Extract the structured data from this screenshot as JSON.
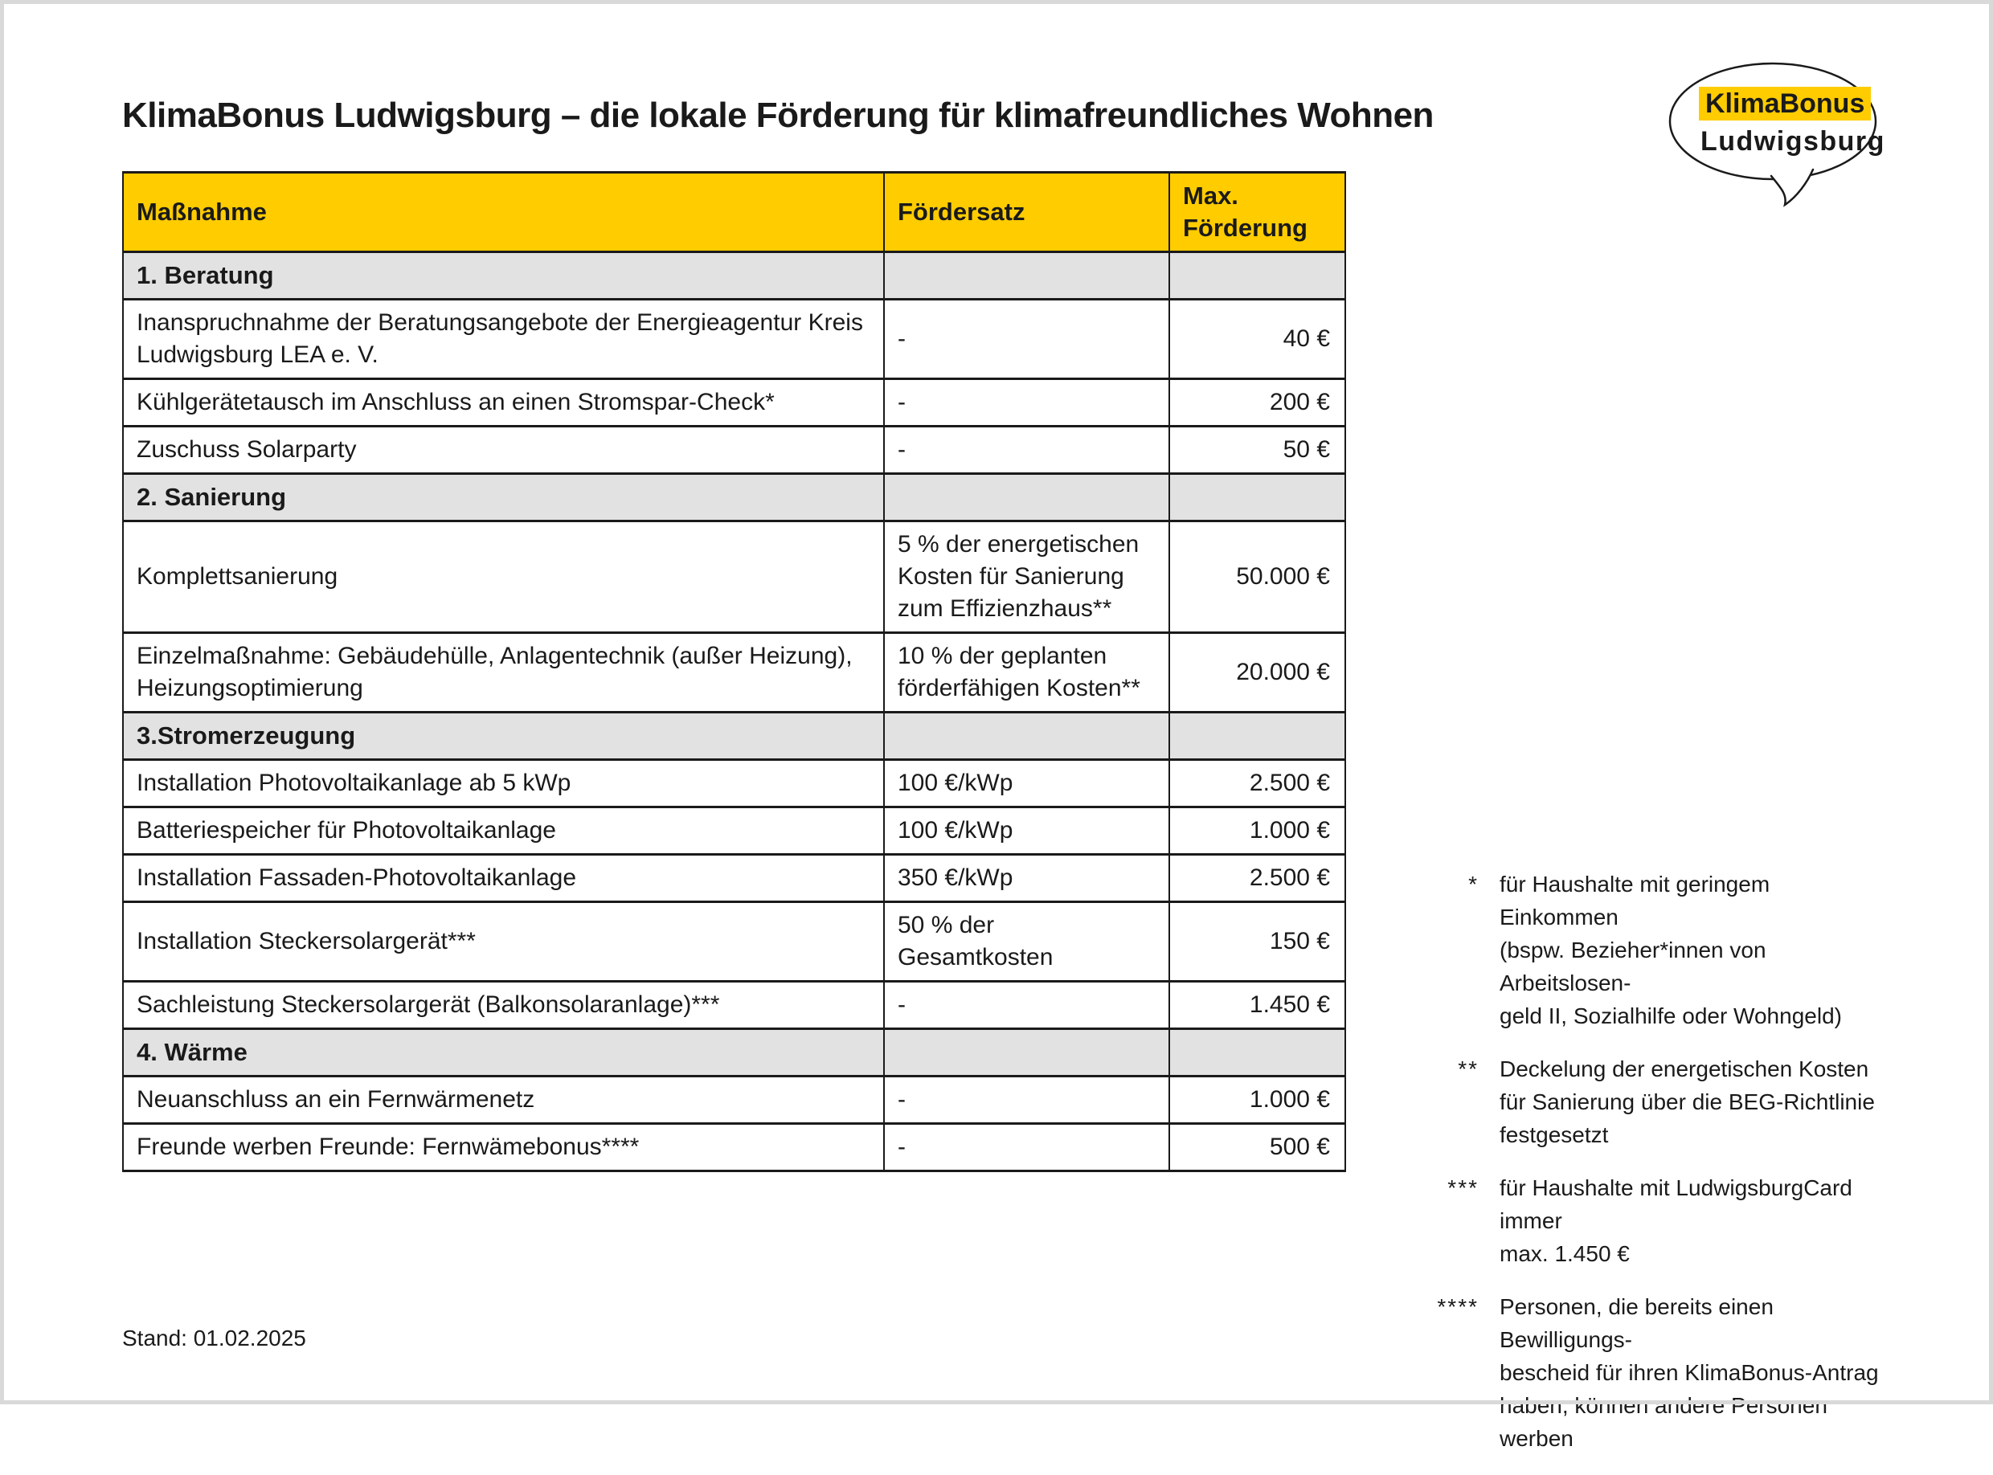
{
  "page": {
    "title": "KlimaBonus Ludwigsburg – die lokale Förderung für klimafreundliches Wohnen",
    "date_note": "Stand: 01.02.2025"
  },
  "logo": {
    "brand": "KlimaBonus",
    "city": "Ludwigsburg"
  },
  "colors": {
    "accent_yellow": "#FFCC00",
    "section_gray": "#E2E2E2",
    "text_dark": "#1A1A1A",
    "frame_gray": "#D9D9D9"
  },
  "table": {
    "headers": [
      "Maßnahme",
      "Fördersatz",
      "Max.\nFörderung"
    ],
    "rows": [
      {
        "type": "section",
        "label": "1. Beratung"
      },
      {
        "type": "item",
        "massnahme": "Inanspruchnahme der Beratungsangebote der Energieagentur Kreis\nLudwigsburg LEA e. V.",
        "foerdersatz": "-",
        "max": "40 €"
      },
      {
        "type": "item",
        "massnahme": "Kühlgerätetausch im Anschluss an einen Stromspar-Check*",
        "foerdersatz": "-",
        "max": "200 €"
      },
      {
        "type": "item",
        "massnahme": "Zuschuss Solarparty",
        "foerdersatz": "-",
        "max": "50 €"
      },
      {
        "type": "section",
        "label": "2. Sanierung"
      },
      {
        "type": "item",
        "massnahme": "Komplettsanierung",
        "foerdersatz": "5 % der energetischen\nKosten für Sanierung\nzum Effizienzhaus**",
        "max": "50.000 €"
      },
      {
        "type": "item",
        "massnahme": "Einzelmaßnahme: Gebäudehülle, Anlagentechnik (außer Heizung),\nHeizungsoptimierung",
        "foerdersatz": "10 % der geplanten\nförderfähigen Kosten**",
        "max": "20.000 €"
      },
      {
        "type": "section",
        "label": "3.Stromerzeugung"
      },
      {
        "type": "item",
        "massnahme": "Installation Photovoltaikanlage ab 5 kWp",
        "foerdersatz": "100 €/kWp",
        "max": "2.500 €"
      },
      {
        "type": "item",
        "massnahme": "Batteriespeicher für Photovoltaikanlage",
        "foerdersatz": "100 €/kWp",
        "max": "1.000 €"
      },
      {
        "type": "item",
        "massnahme": "Installation Fassaden-Photovoltaikanlage",
        "foerdersatz": "350 €/kWp",
        "max": "2.500 €"
      },
      {
        "type": "item",
        "massnahme": "Installation Steckersolargerät***",
        "foerdersatz": "50 % der\nGesamtkosten",
        "max": "150 €"
      },
      {
        "type": "item",
        "massnahme": "Sachleistung Steckersolargerät (Balkonsolaranlage)***",
        "foerdersatz": "-",
        "max": "1.450 €"
      },
      {
        "type": "section",
        "label": "4. Wärme"
      },
      {
        "type": "item",
        "massnahme": "Neuanschluss an ein Fernwärmenetz",
        "foerdersatz": "-",
        "max": "1.000 €"
      },
      {
        "type": "item",
        "massnahme": "Freunde werben Freunde: Fernwämebonus****",
        "foerdersatz": "-",
        "max": "500 €"
      }
    ]
  },
  "footnotes": [
    {
      "marker": "*",
      "text": "für Haushalte mit geringem Einkommen\n(bspw. Bezieher*innen von Arbeitslosen-\ngeld II, Sozialhilfe oder Wohngeld)"
    },
    {
      "marker": "**",
      "text": "Deckelung der energetischen Kosten\nfür Sanierung über die BEG-Richtlinie\nfestgesetzt"
    },
    {
      "marker": "***",
      "text": "für Haushalte mit LudwigsburgCard immer\nmax. 1.450 €"
    },
    {
      "marker": "****",
      "text": "Personen, die bereits einen Bewilligungs-\nbescheid für ihren KlimaBonus-Antrag\nhaben, können andere Personen werben"
    }
  ]
}
